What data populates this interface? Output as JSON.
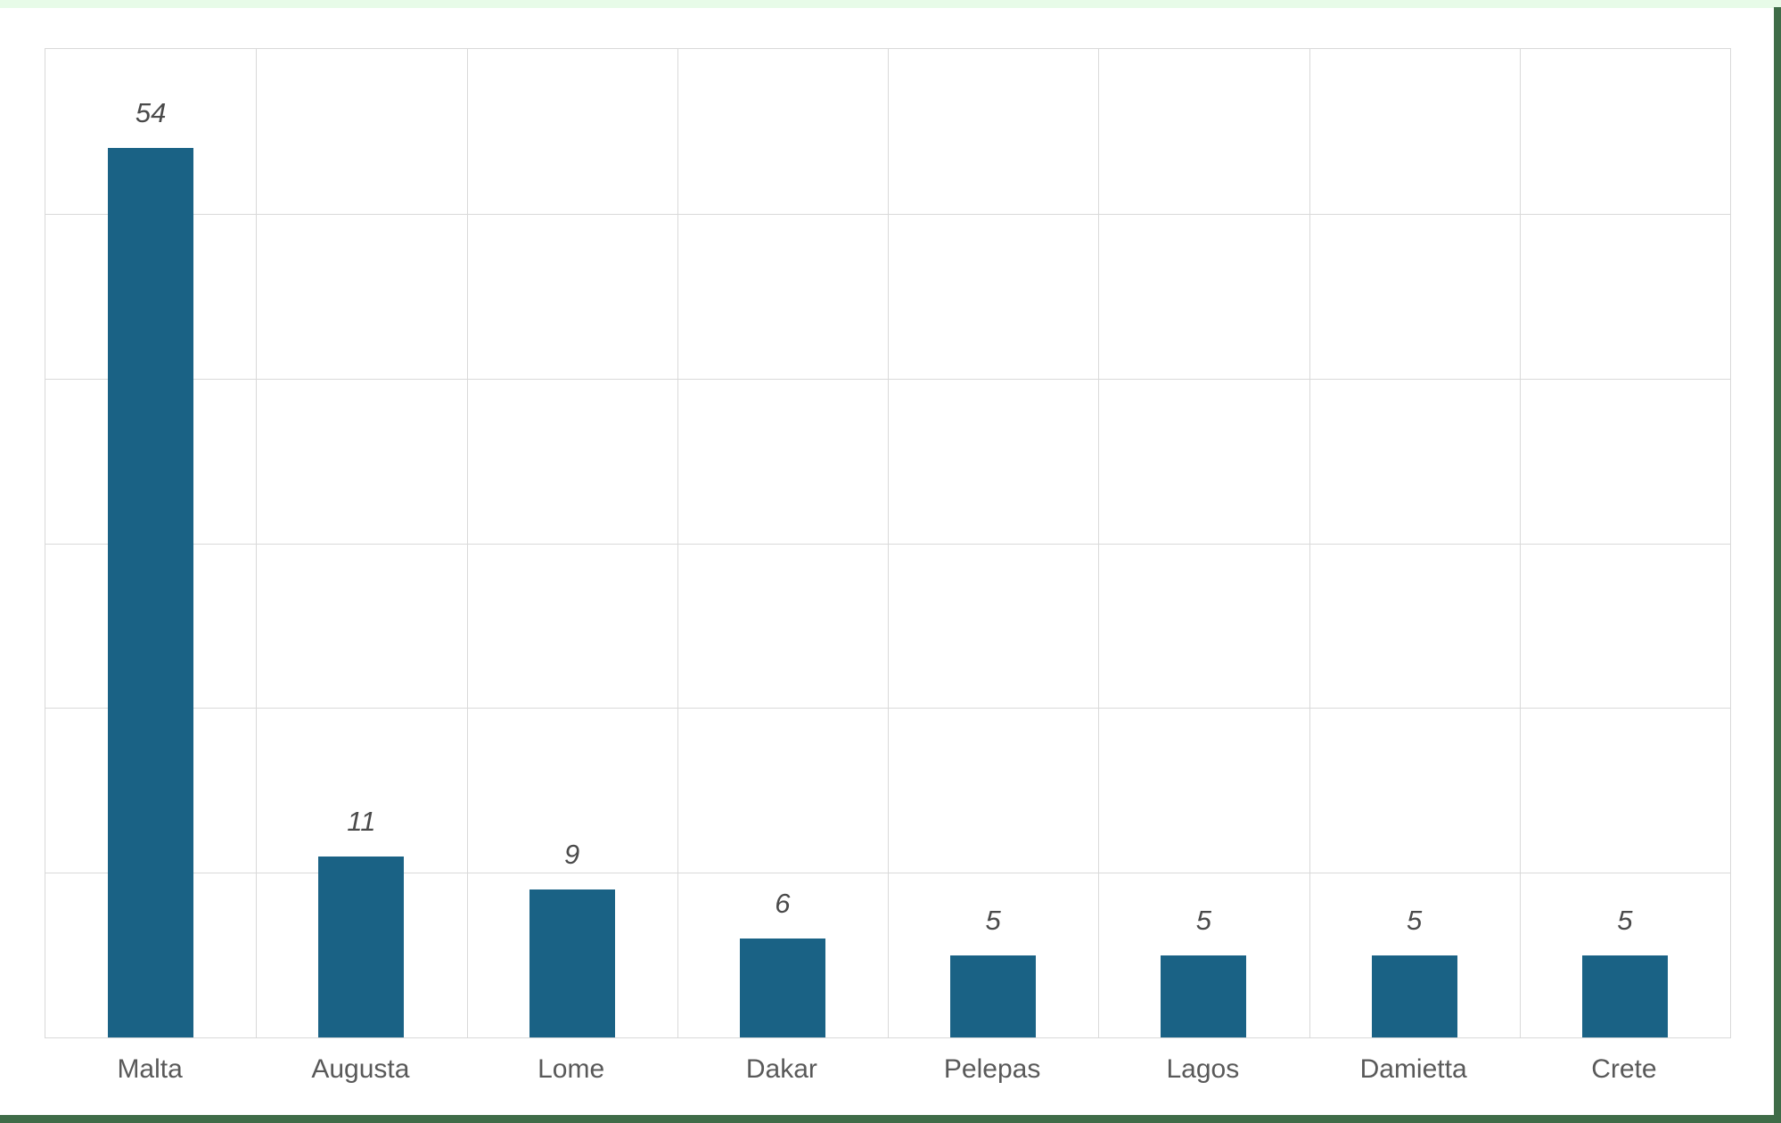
{
  "frame": {
    "top_strip_color": "#E7FBE8",
    "right_strip_color": "#3F6C48",
    "bottom_strip_color": "#3F6C48"
  },
  "chart_data": {
    "type": "bar",
    "title": "",
    "xlabel": "",
    "ylabel": "",
    "categories": [
      "Malta",
      "Augusta",
      "Lome",
      "Dakar",
      "Pelepas",
      "Lagos",
      "Damietta",
      "Crete"
    ],
    "values": [
      54,
      11,
      9,
      6,
      5,
      5,
      5,
      5
    ],
    "data_labels": [
      "54",
      "11",
      "9",
      "6",
      "5",
      "5",
      "5",
      "5"
    ],
    "ylim": [
      0,
      60
    ],
    "gridline_step": 10,
    "grid": true,
    "legend": false,
    "y_tick_labels_visible": false,
    "data_labels_visible": true,
    "data_label_position": "outside-end",
    "data_label_style": "italic",
    "bar_color": "#1A6285",
    "gridline_color": "#D9D9D9",
    "plot_border_color": "#D9D9D9",
    "data_label_color": "#4A4A4A",
    "category_label_color": "#595959"
  }
}
